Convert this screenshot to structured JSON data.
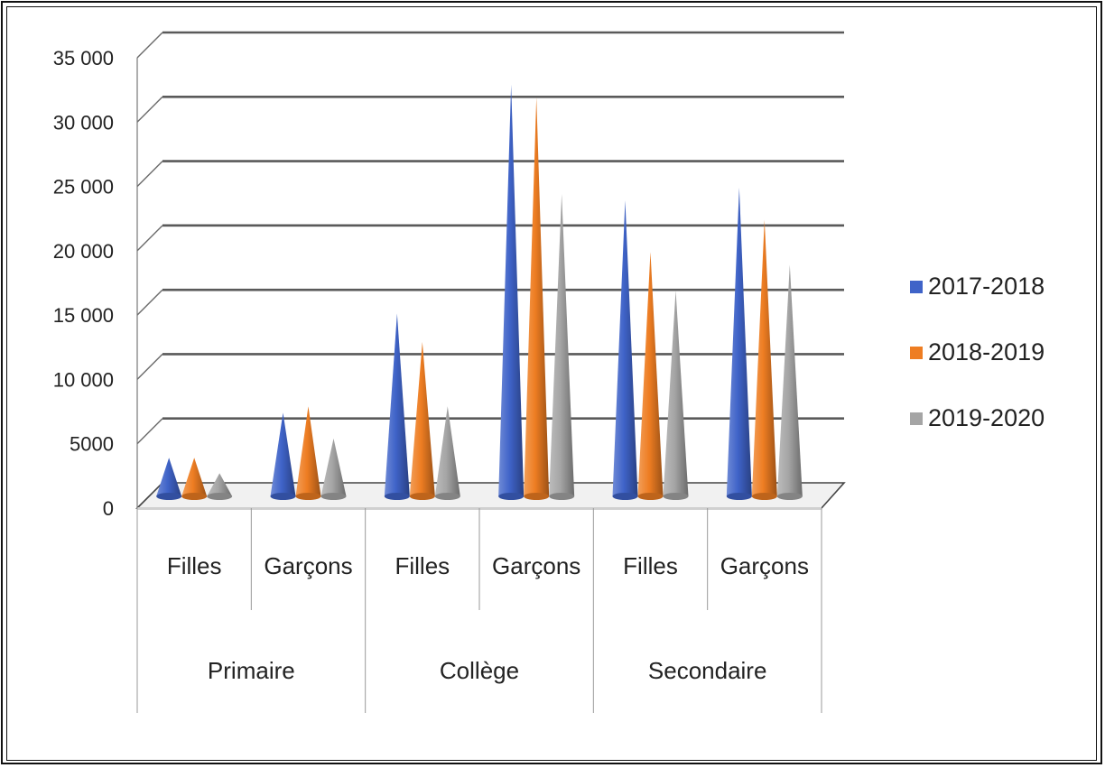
{
  "chart_data": {
    "type": "bar",
    "style": "3d-cone",
    "title": "",
    "xlabel": "",
    "ylabel": "",
    "ylim": [
      0,
      35000
    ],
    "y_ticks": [
      "0",
      "5000",
      "10 000",
      "15 000",
      "20 000",
      "25 000",
      "30 000",
      "35 000"
    ],
    "grid": true,
    "legend_position": "right",
    "groups": [
      {
        "label": "Primaire",
        "categories": [
          "Filles",
          "Garçons"
        ]
      },
      {
        "label": "Collège",
        "categories": [
          "Filles",
          "Garçons"
        ]
      },
      {
        "label": "Secondaire",
        "categories": [
          "Filles",
          "Garçons"
        ]
      }
    ],
    "categories": [
      "Filles",
      "Garçons",
      "Filles",
      "Garçons",
      "Filles",
      "Garçons"
    ],
    "series": [
      {
        "name": "2017-2018",
        "color": "#3f63c8",
        "values": [
          3000,
          6500,
          14200,
          32000,
          23000,
          24000
        ]
      },
      {
        "name": "2018-2019",
        "color": "#ee7d22",
        "values": [
          3000,
          7000,
          12000,
          31000,
          19000,
          21500
        ]
      },
      {
        "name": "2019-2020",
        "color": "#a5a5a5",
        "values": [
          1800,
          4500,
          7000,
          23500,
          16000,
          18000
        ]
      }
    ]
  }
}
